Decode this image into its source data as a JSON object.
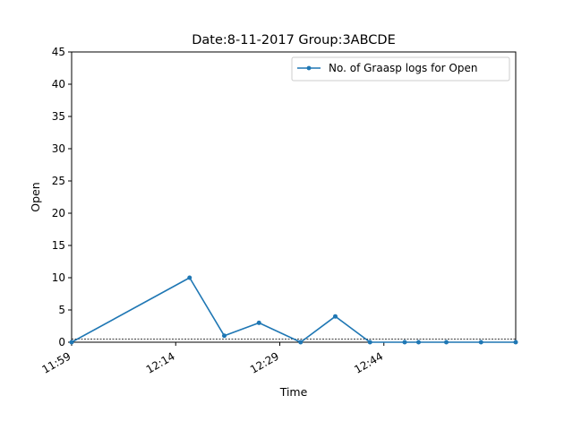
{
  "chart_data": {
    "type": "line",
    "title": "Date:8-11-2017  Group:3ABCDE",
    "xlabel": "Time",
    "ylabel": "Open",
    "xlim": [
      "11:59",
      "13:03"
    ],
    "ylim": [
      0,
      45
    ],
    "x_ticks": [
      "11:59",
      "12:14",
      "12:29",
      "12:44"
    ],
    "y_ticks": [
      0,
      5,
      10,
      15,
      20,
      25,
      30,
      35,
      40,
      45
    ],
    "grid": false,
    "legend_position": "top-right",
    "reference_lines": [
      {
        "y": 0,
        "style": "solid",
        "color": "#000000"
      },
      {
        "y": 0.5,
        "style": "dotted",
        "color": "#000000"
      }
    ],
    "series": [
      {
        "name": "No. of Graasp logs for Open",
        "color": "#1f77b4",
        "x": [
          "11:59",
          "12:16",
          "12:21",
          "12:26",
          "12:32",
          "12:37",
          "12:42",
          "12:47",
          "12:49",
          "12:53",
          "12:58",
          "13:03"
        ],
        "values": [
          0,
          10,
          1,
          3,
          0,
          4,
          0,
          0,
          0,
          0,
          0,
          0
        ]
      }
    ]
  }
}
